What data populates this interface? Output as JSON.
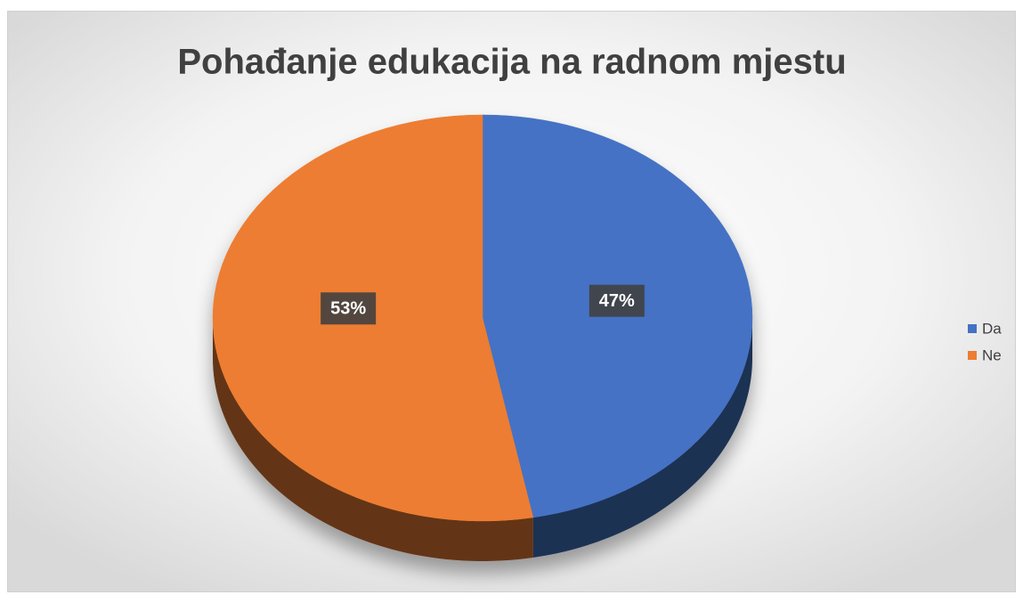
{
  "chart_data": {
    "type": "pie",
    "title": "Pohađanje edukacija na radnom mjestu",
    "categories": [
      "Da",
      "Ne"
    ],
    "values": [
      47,
      53
    ],
    "value_labels": [
      "47%",
      "53%"
    ],
    "colors": [
      "#4472c4",
      "#ed7d31"
    ],
    "legend": "right"
  }
}
